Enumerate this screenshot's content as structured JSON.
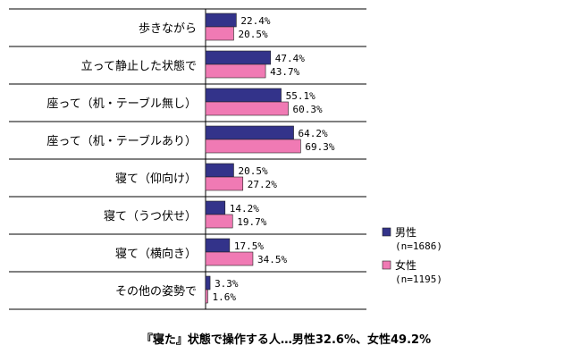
{
  "chart_data": {
    "type": "bar",
    "orientation": "horizontal",
    "categories": [
      "歩きながら",
      "立って静止した状態で",
      "座って（机・テーブル無し）",
      "座って（机・テーブルあり）",
      "寝て（仰向け）",
      "寝て（うつ伏せ）",
      "寝て（横向き）",
      "その他の姿勢で"
    ],
    "series": [
      {
        "name": "男性",
        "sample": "(n=1686)",
        "color": "#33338a",
        "values": [
          22.4,
          47.4,
          55.1,
          64.2,
          20.5,
          14.2,
          17.5,
          3.3
        ]
      },
      {
        "name": "女性",
        "sample": "(n=1195)",
        "color": "#f07ab4",
        "values": [
          20.5,
          43.7,
          60.3,
          69.3,
          27.2,
          19.7,
          34.5,
          1.6
        ]
      }
    ],
    "value_labels": [
      [
        "22.4%",
        "47.4%",
        "55.1%",
        "64.2%",
        "20.5%",
        "14.2%",
        "17.5%",
        "3.3%"
      ],
      [
        "20.5%",
        "43.7%",
        "60.3%",
        "69.3%",
        "27.2%",
        "19.7%",
        "34.5%",
        "1.6%"
      ]
    ],
    "xlim": [
      0,
      100
    ],
    "grid": false,
    "legend_position": "right",
    "footnote": "『寝た』状態で操作する人…男性32.6%、女性49.2%"
  }
}
